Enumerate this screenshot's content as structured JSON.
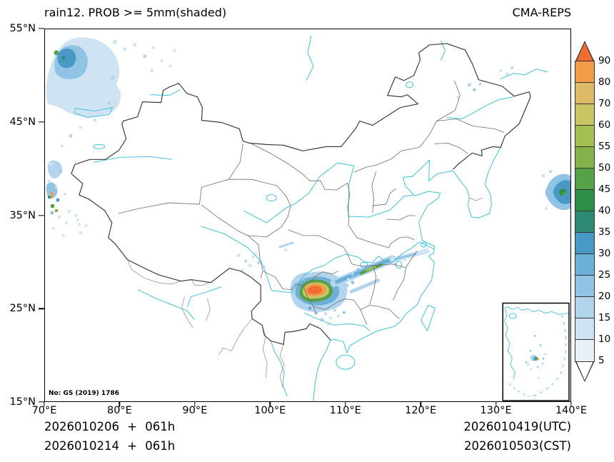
{
  "header": {
    "title": "rain12. PROB >= 5mm(shaded)",
    "model": "CMA-REPS"
  },
  "axes": {
    "x_ticks": [
      "70°E",
      "80°E",
      "90°E",
      "100°E",
      "110°E",
      "120°E",
      "130°E",
      "140°E"
    ],
    "y_ticks": [
      "55°N",
      "45°N",
      "35°N",
      "25°N",
      "15°N"
    ]
  },
  "map": {
    "license_note": "No: GS (2019) 1786"
  },
  "footer": {
    "init_line1": "2026010206 + 061h",
    "init_line2": "2026010214 + 061h",
    "valid_line1": "2026010419(UTC)",
    "valid_line2": "2026010503(CST)"
  },
  "colors": {
    "water": "#3fc0d8",
    "province": "#6b6b6b",
    "national": "#3c3c3c",
    "neighbor": "#8a8a8a"
  },
  "palette": {
    "p5": "#e8f0f8",
    "p10": "#d0e3f2",
    "p15": "#b3d4ed",
    "p20": "#90c3e4",
    "p25": "#6cb0d8",
    "p30": "#4899c6",
    "p35": "#2f8a74",
    "p40": "#2f8f48",
    "p45": "#57a149",
    "p50": "#83b14b",
    "p55": "#a6bf53",
    "p60": "#c8c562",
    "p70": "#ddba66",
    "p80": "#f29b49",
    "p90": "#ef6c32"
  },
  "colorbar": {
    "tick_labels": [
      90,
      80,
      70,
      60,
      55,
      50,
      45,
      40,
      35,
      30,
      25,
      20,
      15,
      10,
      5
    ],
    "segment_colors_top_to_bottom": [
      "#ef6c32",
      "#f29b49",
      "#ddba66",
      "#c8c562",
      "#a6bf53",
      "#83b14b",
      "#57a149",
      "#2f8f48",
      "#2f8a74",
      "#4899c6",
      "#6cb0d8",
      "#90c3e4",
      "#b3d4ed",
      "#d0e3f2",
      "#e8f0f8",
      "#ffffff"
    ]
  },
  "chart_data": {
    "type": "heatmap",
    "title": "rain12. PROB >= 5mm(shaded)",
    "model": "CMA-REPS",
    "units": "%",
    "projection_extent": {
      "lon_e": [
        70,
        140
      ],
      "lat_n": [
        15,
        55
      ]
    },
    "x_axis": {
      "tick_values_deg_e": [
        70,
        80,
        90,
        100,
        110,
        120,
        130,
        140
      ]
    },
    "y_axis": {
      "tick_values_deg_n": [
        15,
        25,
        35,
        45,
        55
      ]
    },
    "colorbar_levels": [
      5,
      10,
      15,
      20,
      25,
      30,
      35,
      40,
      45,
      50,
      55,
      60,
      70,
      80,
      90
    ],
    "colorbar_extend": "both",
    "forecast_labels": {
      "init_plus_lead": [
        "2026010206 + 061h",
        "2026010214 + 061h"
      ],
      "valid": [
        "2026010419(UTC)",
        "2026010503(CST)"
      ]
    },
    "shaded_regions": [
      {
        "area": "northwest corner near 70-81E, 45-54N",
        "prob_range_pct": [
          5,
          45
        ]
      },
      {
        "area": "western border near 70-76E, 34-41N",
        "prob_range_pct": [
          5,
          90
        ]
      },
      {
        "area": "southwest China band 101-116E, 24-31N with orange core near 104-106E 26-28N",
        "prob_range_pct": [
          5,
          95
        ]
      },
      {
        "area": "narrow NE-oriented strip 108-116E, 28-30.5N",
        "prob_range_pct": [
          5,
          55
        ]
      },
      {
        "area": "east map edge near 136-140E, 35-40N",
        "prob_range_pct": [
          5,
          45
        ]
      },
      {
        "area": "South China Sea inset specks",
        "prob_range_pct": [
          5,
          80
        ]
      }
    ]
  }
}
